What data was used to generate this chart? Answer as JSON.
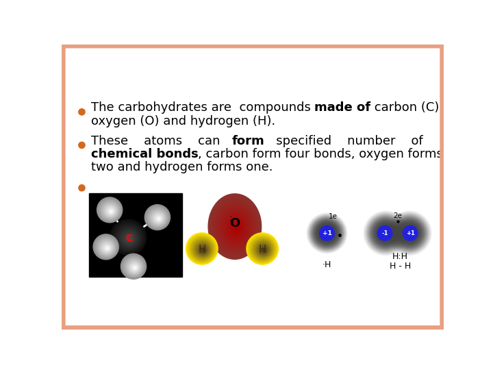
{
  "background_color": "#FFFFFF",
  "border_color": "#E8A080",
  "bullet_color": "#D2691E",
  "text_color": "#000000",
  "bullet1_line1_pre": "The carbohydrates are  compounds ",
  "bullet1_line1_bold": "made of",
  "bullet1_line1_post": " carbon (C),",
  "bullet1_line2": "oxygen (O) and hydrogen (H).",
  "bullet2_line1_pre": "These    atoms    can   ",
  "bullet2_line1_bold": "form",
  "bullet2_line1_post": "   specified    number    of",
  "bullet2_line2_bold": "chemical bonds",
  "bullet2_line2_post": ", carbon form four bonds, oxygen forms",
  "bullet2_line3": "two and hydrogen forms one.",
  "font_size_main": 13
}
